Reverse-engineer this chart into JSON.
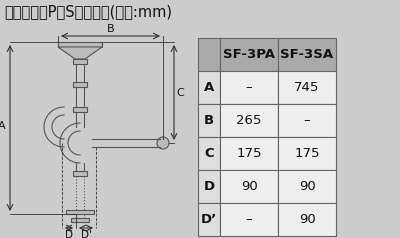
{
  "title": "流し用排水P、Sトラップ(単位:mm)",
  "title_fontsize": 10.5,
  "bg_color": "#cccccc",
  "table_header": [
    "",
    "SF-3PA",
    "SF-3SA"
  ],
  "table_rows": [
    [
      "A",
      "–",
      "745"
    ],
    [
      "B",
      "265",
      "–"
    ],
    [
      "C",
      "175",
      "175"
    ],
    [
      "D",
      "90",
      "90"
    ],
    [
      "D’",
      "–",
      "90"
    ]
  ],
  "header_bg": "#aaaaaa",
  "data_bg_light": "#dddddd",
  "data_bg_white": "#eeeeee",
  "cell_fontsize": 9.5,
  "header_fontsize": 9.5,
  "pipe_color": "#888888",
  "dim_color": "#333333",
  "line_color": "#555555"
}
